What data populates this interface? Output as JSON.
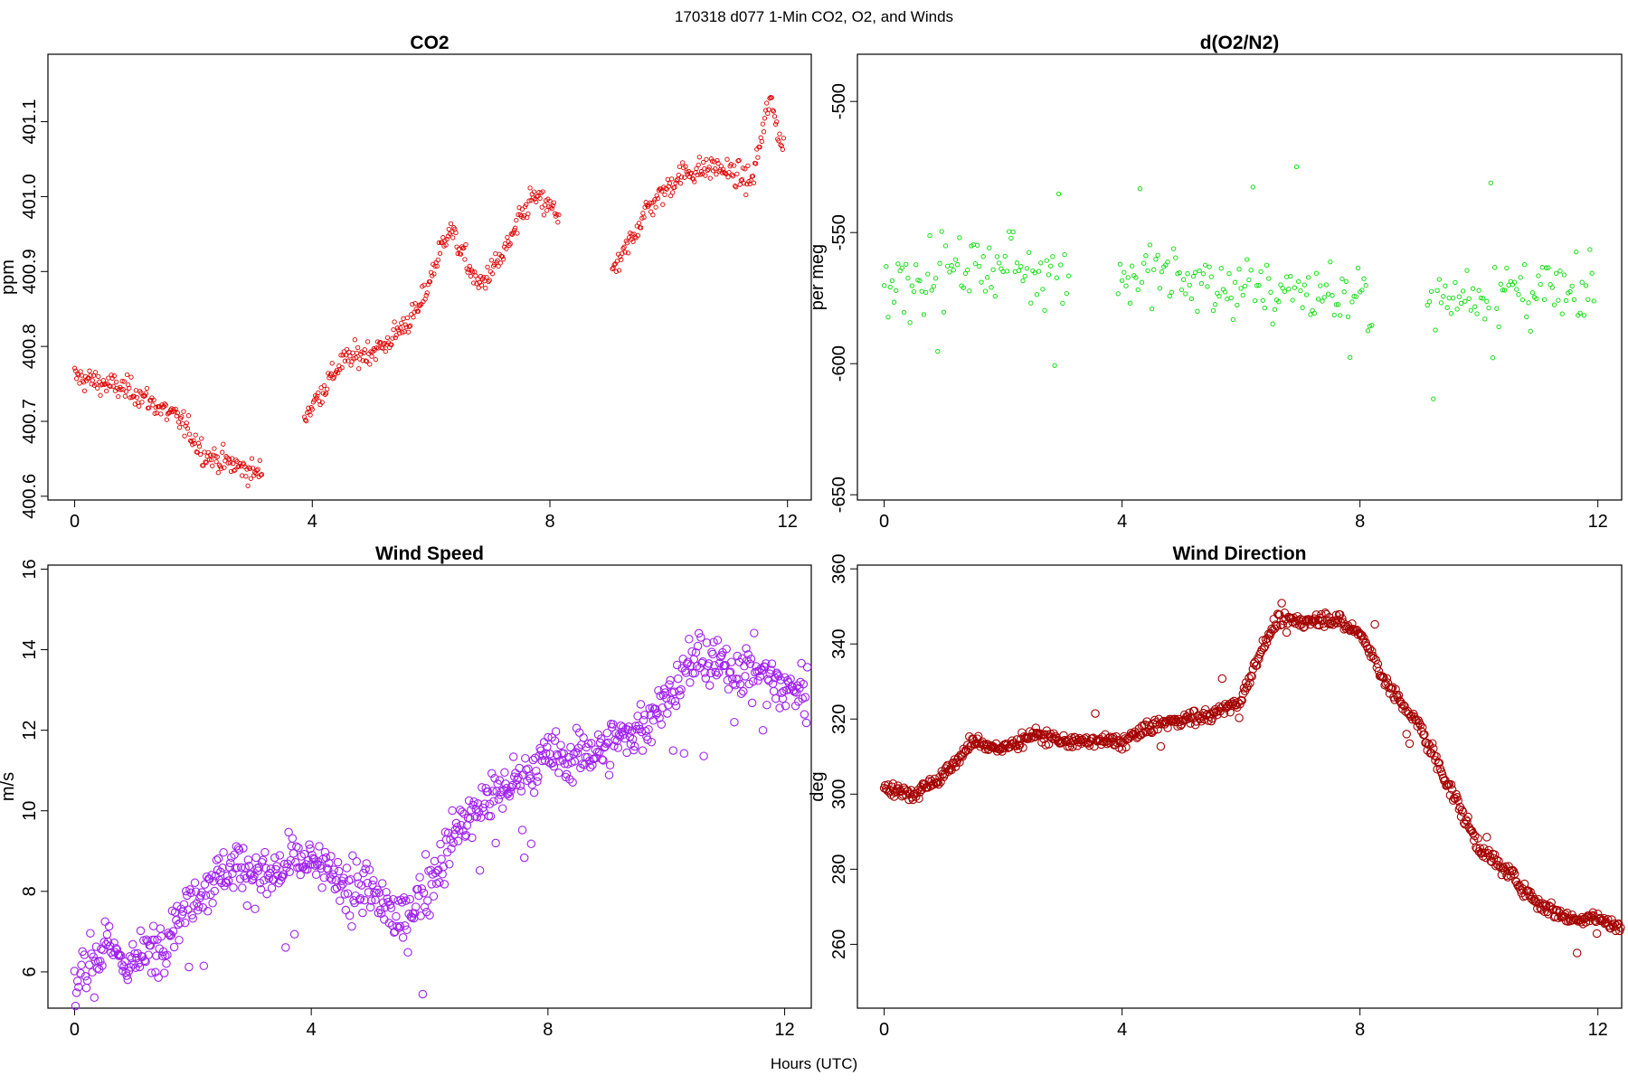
{
  "figure": {
    "title": "170318   d077   1-Min CO2, O2, and Winds",
    "xlabel": "Hours (UTC)"
  },
  "chart_data": [
    {
      "id": "co2",
      "type": "scatter",
      "title": "CO2",
      "ylabel": "ppm",
      "color": "#e00000",
      "marker_radius": 2.2,
      "xlim": [
        -0.45,
        12.4
      ],
      "ylim": [
        400.595,
        401.19
      ],
      "xticks": [
        "0",
        "4",
        "8",
        "12"
      ],
      "xtick_values": [
        0,
        4,
        8,
        12
      ],
      "yticks": [
        "400.6",
        "400.7",
        "400.8",
        "400.9",
        "401.0",
        "401.1"
      ],
      "ytick_values": [
        400.6,
        400.7,
        400.8,
        400.9,
        401.0,
        401.1
      ],
      "trend": [
        [
          0.0,
          400.76
        ],
        [
          1.0,
          400.74
        ],
        [
          1.8,
          400.7
        ],
        [
          2.2,
          400.655
        ],
        [
          3.1,
          400.63
        ],
        [
          3.9,
          400.71
        ],
        [
          4.5,
          400.78
        ],
        [
          5.2,
          400.8
        ],
        [
          5.8,
          400.85
        ],
        [
          6.3,
          400.96
        ],
        [
          6.8,
          400.88
        ],
        [
          7.2,
          400.92
        ],
        [
          7.7,
          401.0
        ],
        [
          8.1,
          400.98
        ],
        [
          9.1,
          400.9
        ],
        [
          9.6,
          400.98
        ],
        [
          10.2,
          401.03
        ],
        [
          10.8,
          401.04
        ],
        [
          11.4,
          401.02
        ],
        [
          11.7,
          401.13
        ],
        [
          11.9,
          401.07
        ]
      ],
      "x_range": [
        0.0,
        11.95
      ],
      "gaps": [
        [
          3.15,
          3.85
        ],
        [
          8.15,
          9.05
        ]
      ],
      "noise": 0.014,
      "step_min": 1
    },
    {
      "id": "o2",
      "type": "scatter",
      "title": "d(O2/N2)",
      "ylabel": "per meg",
      "color": "#00dd00",
      "marker_radius": 2.2,
      "xlim": [
        -0.45,
        12.4
      ],
      "ylim": [
        -652,
        -482
      ],
      "xticks": [
        "0",
        "4",
        "8",
        "12"
      ],
      "xtick_values": [
        0,
        4,
        8,
        12
      ],
      "yticks": [
        "-650",
        "-600",
        "-550",
        "-500"
      ],
      "ytick_values": [
        -650,
        -600,
        -550,
        -500
      ],
      "trend": [
        [
          0.0,
          -570
        ],
        [
          1.5,
          -562
        ],
        [
          3.0,
          -563
        ],
        [
          4.0,
          -566
        ],
        [
          6.0,
          -570
        ],
        [
          8.1,
          -575
        ],
        [
          9.2,
          -575
        ],
        [
          10.5,
          -572
        ],
        [
          11.9,
          -576
        ]
      ],
      "x_range": [
        0.0,
        11.95
      ],
      "gaps": [
        [
          3.1,
          3.9
        ],
        [
          8.2,
          9.1
        ]
      ],
      "noise": 11,
      "step_min": 2
    },
    {
      "id": "ws",
      "type": "scatter",
      "title": "Wind Speed",
      "ylabel": "m/s",
      "color": "#a020f0",
      "marker_radius": 4.2,
      "xlim": [
        -0.45,
        12.45
      ],
      "ylim": [
        5.1,
        16.1
      ],
      "xticks": [
        "0",
        "4",
        "8",
        "12"
      ],
      "xtick_values": [
        0,
        4,
        8,
        12
      ],
      "yticks": [
        "6",
        "8",
        "10",
        "12",
        "14",
        "16"
      ],
      "ytick_values": [
        6,
        8,
        10,
        12,
        14,
        16
      ],
      "trend": [
        [
          0.0,
          5.8
        ],
        [
          0.5,
          6.6
        ],
        [
          1.0,
          6.2
        ],
        [
          1.5,
          6.8
        ],
        [
          2.0,
          7.9
        ],
        [
          2.7,
          8.7
        ],
        [
          3.2,
          8.3
        ],
        [
          3.8,
          8.8
        ],
        [
          4.5,
          8.3
        ],
        [
          5.0,
          8.0
        ],
        [
          5.5,
          7.2
        ],
        [
          6.0,
          8.2
        ],
        [
          6.5,
          9.6
        ],
        [
          7.0,
          10.3
        ],
        [
          7.5,
          10.8
        ],
        [
          8.0,
          11.3
        ],
        [
          8.5,
          11.4
        ],
        [
          9.0,
          11.6
        ],
        [
          9.5,
          12.0
        ],
        [
          10.0,
          12.8
        ],
        [
          10.5,
          13.8
        ],
        [
          11.0,
          13.5
        ],
        [
          11.5,
          13.6
        ],
        [
          12.0,
          13.0
        ],
        [
          12.4,
          13.1
        ]
      ],
      "x_range": [
        0.0,
        12.4
      ],
      "gaps": [],
      "noise": 0.55,
      "step_min": 1
    },
    {
      "id": "wd",
      "type": "scatter",
      "title": "Wind Direction",
      "ylabel": "deg",
      "color": "#a50000",
      "marker_radius": 4.2,
      "xlim": [
        -0.45,
        12.4
      ],
      "ylim": [
        243,
        361
      ],
      "xticks": [
        "0",
        "4",
        "8",
        "12"
      ],
      "xtick_values": [
        0,
        4,
        8,
        12
      ],
      "yticks": [
        "260",
        "280",
        "300",
        "320",
        "340",
        "360"
      ],
      "ytick_values": [
        260,
        280,
        300,
        320,
        340,
        360
      ],
      "trend": [
        [
          0.0,
          302
        ],
        [
          0.5,
          300
        ],
        [
          1.0,
          305
        ],
        [
          1.5,
          314
        ],
        [
          2.0,
          312
        ],
        [
          2.5,
          316
        ],
        [
          3.0,
          314
        ],
        [
          4.0,
          314
        ],
        [
          4.5,
          318
        ],
        [
          5.0,
          320
        ],
        [
          5.5,
          321
        ],
        [
          6.0,
          325
        ],
        [
          6.3,
          337
        ],
        [
          6.6,
          346
        ],
        [
          7.0,
          346
        ],
        [
          7.5,
          347
        ],
        [
          8.0,
          343
        ],
        [
          8.5,
          328
        ],
        [
          9.0,
          318
        ],
        [
          9.5,
          302
        ],
        [
          10.0,
          286
        ],
        [
          10.5,
          279
        ],
        [
          11.0,
          271
        ],
        [
          11.5,
          267
        ],
        [
          12.0,
          267
        ],
        [
          12.4,
          264
        ]
      ],
      "x_range": [
        0.0,
        12.4
      ],
      "gaps": [],
      "noise": 1.6,
      "step_min": 1
    }
  ]
}
